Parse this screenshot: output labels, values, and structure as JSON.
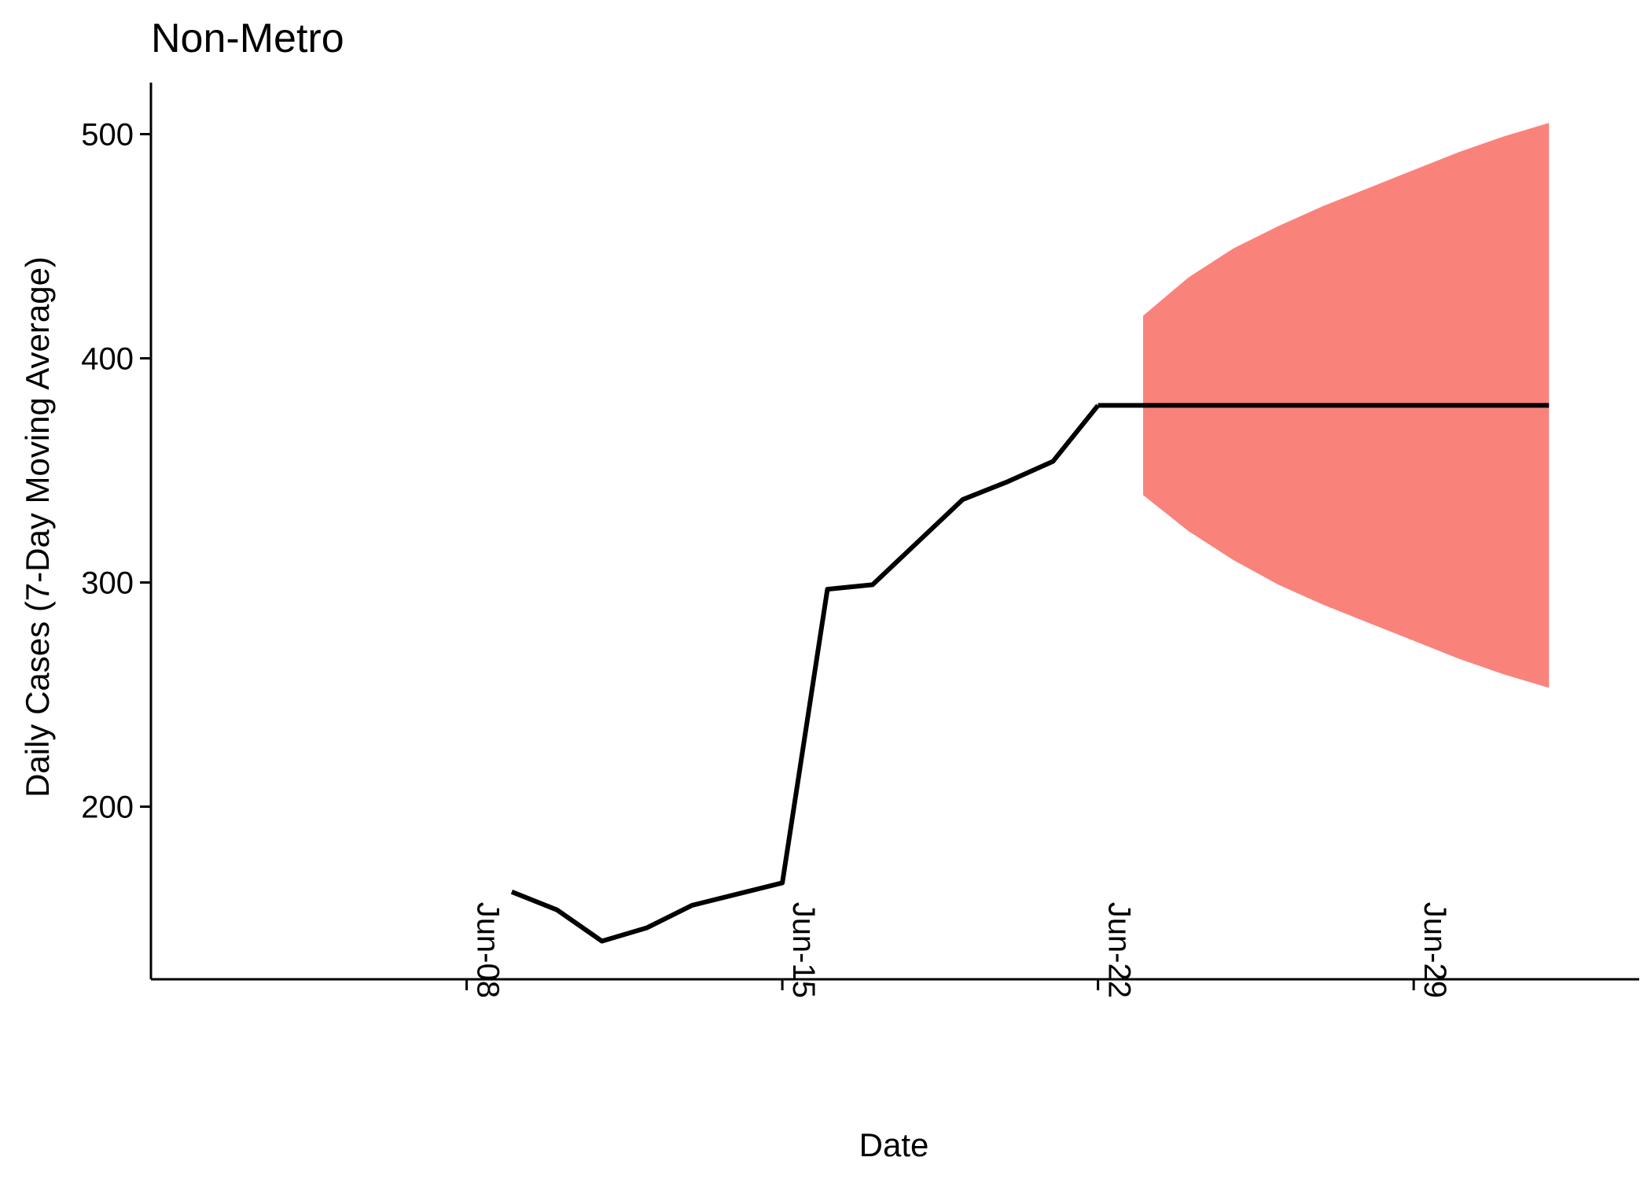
{
  "chart_data": {
    "type": "line",
    "title": "Non-Metro",
    "xlabel": "Date",
    "ylabel": "Daily Cases (7-Day Moving Average)",
    "x_axis_type": "date",
    "xlim": [
      "2020-06-01",
      "2020-07-04"
    ],
    "ylim": [
      123,
      523
    ],
    "grid": false,
    "legend": "none",
    "x_ticks": [
      {
        "date": "2020-06-08",
        "label": "Jun-08"
      },
      {
        "date": "2020-06-15",
        "label": "Jun-15"
      },
      {
        "date": "2020-06-22",
        "label": "Jun-22"
      },
      {
        "date": "2020-06-29",
        "label": "Jun-29"
      }
    ],
    "y_ticks": [
      200,
      300,
      400,
      500
    ],
    "series": [
      {
        "style": "observed",
        "color": "#000000",
        "points": [
          {
            "x": "2020-06-09",
            "y": 162
          },
          {
            "x": "2020-06-10",
            "y": 154
          },
          {
            "x": "2020-06-11",
            "y": 140
          },
          {
            "x": "2020-06-12",
            "y": 146
          },
          {
            "x": "2020-06-13",
            "y": 156
          },
          {
            "x": "2020-06-14",
            "y": 161
          },
          {
            "x": "2020-06-15",
            "y": 166
          },
          {
            "x": "2020-06-16",
            "y": 297
          },
          {
            "x": "2020-06-17",
            "y": 299
          },
          {
            "x": "2020-06-18",
            "y": 318
          },
          {
            "x": "2020-06-19",
            "y": 337
          },
          {
            "x": "2020-06-20",
            "y": 345
          },
          {
            "x": "2020-06-21",
            "y": 354
          },
          {
            "x": "2020-06-22",
            "y": 379
          }
        ]
      },
      {
        "style": "forecast",
        "color": "#000000",
        "points": [
          {
            "x": "2020-06-22",
            "y": 379
          },
          {
            "x": "2020-07-02",
            "y": 379
          }
        ]
      }
    ],
    "band": {
      "color": "#F8766D",
      "opacity": 0.9,
      "points": [
        {
          "x": "2020-06-23",
          "lower": 339,
          "upper": 419
        },
        {
          "x": "2020-06-24",
          "lower": 323,
          "upper": 436
        },
        {
          "x": "2020-06-25",
          "lower": 310,
          "upper": 449
        },
        {
          "x": "2020-06-26",
          "lower": 299,
          "upper": 459
        },
        {
          "x": "2020-06-27",
          "lower": 290,
          "upper": 468
        },
        {
          "x": "2020-06-28",
          "lower": 282,
          "upper": 476
        },
        {
          "x": "2020-06-29",
          "lower": 274,
          "upper": 484
        },
        {
          "x": "2020-06-30",
          "lower": 266,
          "upper": 492
        },
        {
          "x": "2020-07-01",
          "lower": 259,
          "upper": 499
        },
        {
          "x": "2020-07-02",
          "lower": 253,
          "upper": 505
        }
      ]
    }
  }
}
